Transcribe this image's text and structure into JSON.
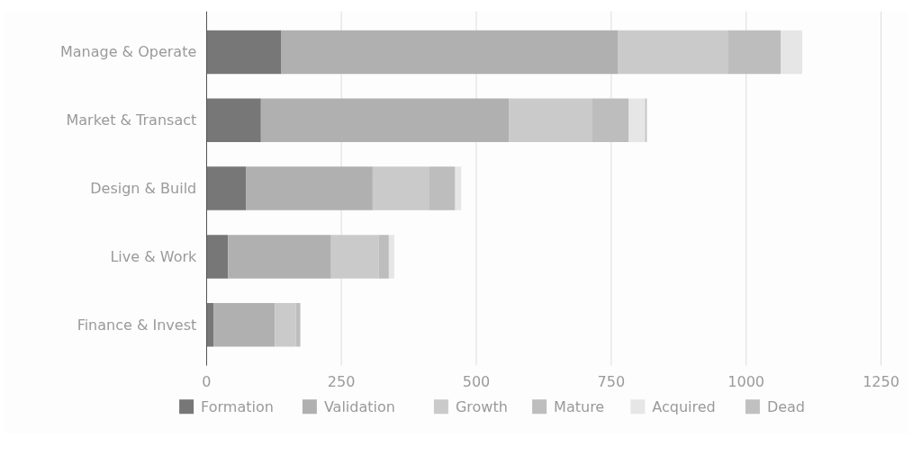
{
  "chart_data": {
    "type": "bar",
    "orientation": "horizontal",
    "stacked": true,
    "categories": [
      "Manage & Operate",
      "Market & Transact",
      "Design & Build",
      "Live & Work",
      "Finance & Invest"
    ],
    "series": [
      {
        "name": "Formation",
        "color": "#777777",
        "values": [
          139,
          101,
          73,
          40,
          13
        ]
      },
      {
        "name": "Validation",
        "color": "#b0b0b0",
        "values": [
          624,
          460,
          235,
          191,
          114
        ]
      },
      {
        "name": "Growth",
        "color": "#cacaca",
        "values": [
          203,
          153,
          104,
          88,
          39
        ]
      },
      {
        "name": "Mature",
        "color": "#bdbdbd",
        "values": [
          98,
          68,
          49,
          19,
          8
        ]
      },
      {
        "name": "Acquired",
        "color": "#e6e6e6",
        "values": [
          40,
          31,
          11,
          10,
          0
        ]
      },
      {
        "name": "Dead",
        "color": "#c0c0c0",
        "values": [
          0,
          3,
          0,
          0,
          0
        ]
      }
    ],
    "xlim": [
      0,
      1250
    ],
    "xticks": [
      0,
      250,
      500,
      750,
      1000,
      1250
    ],
    "grid": "x",
    "legend": "bottom"
  }
}
